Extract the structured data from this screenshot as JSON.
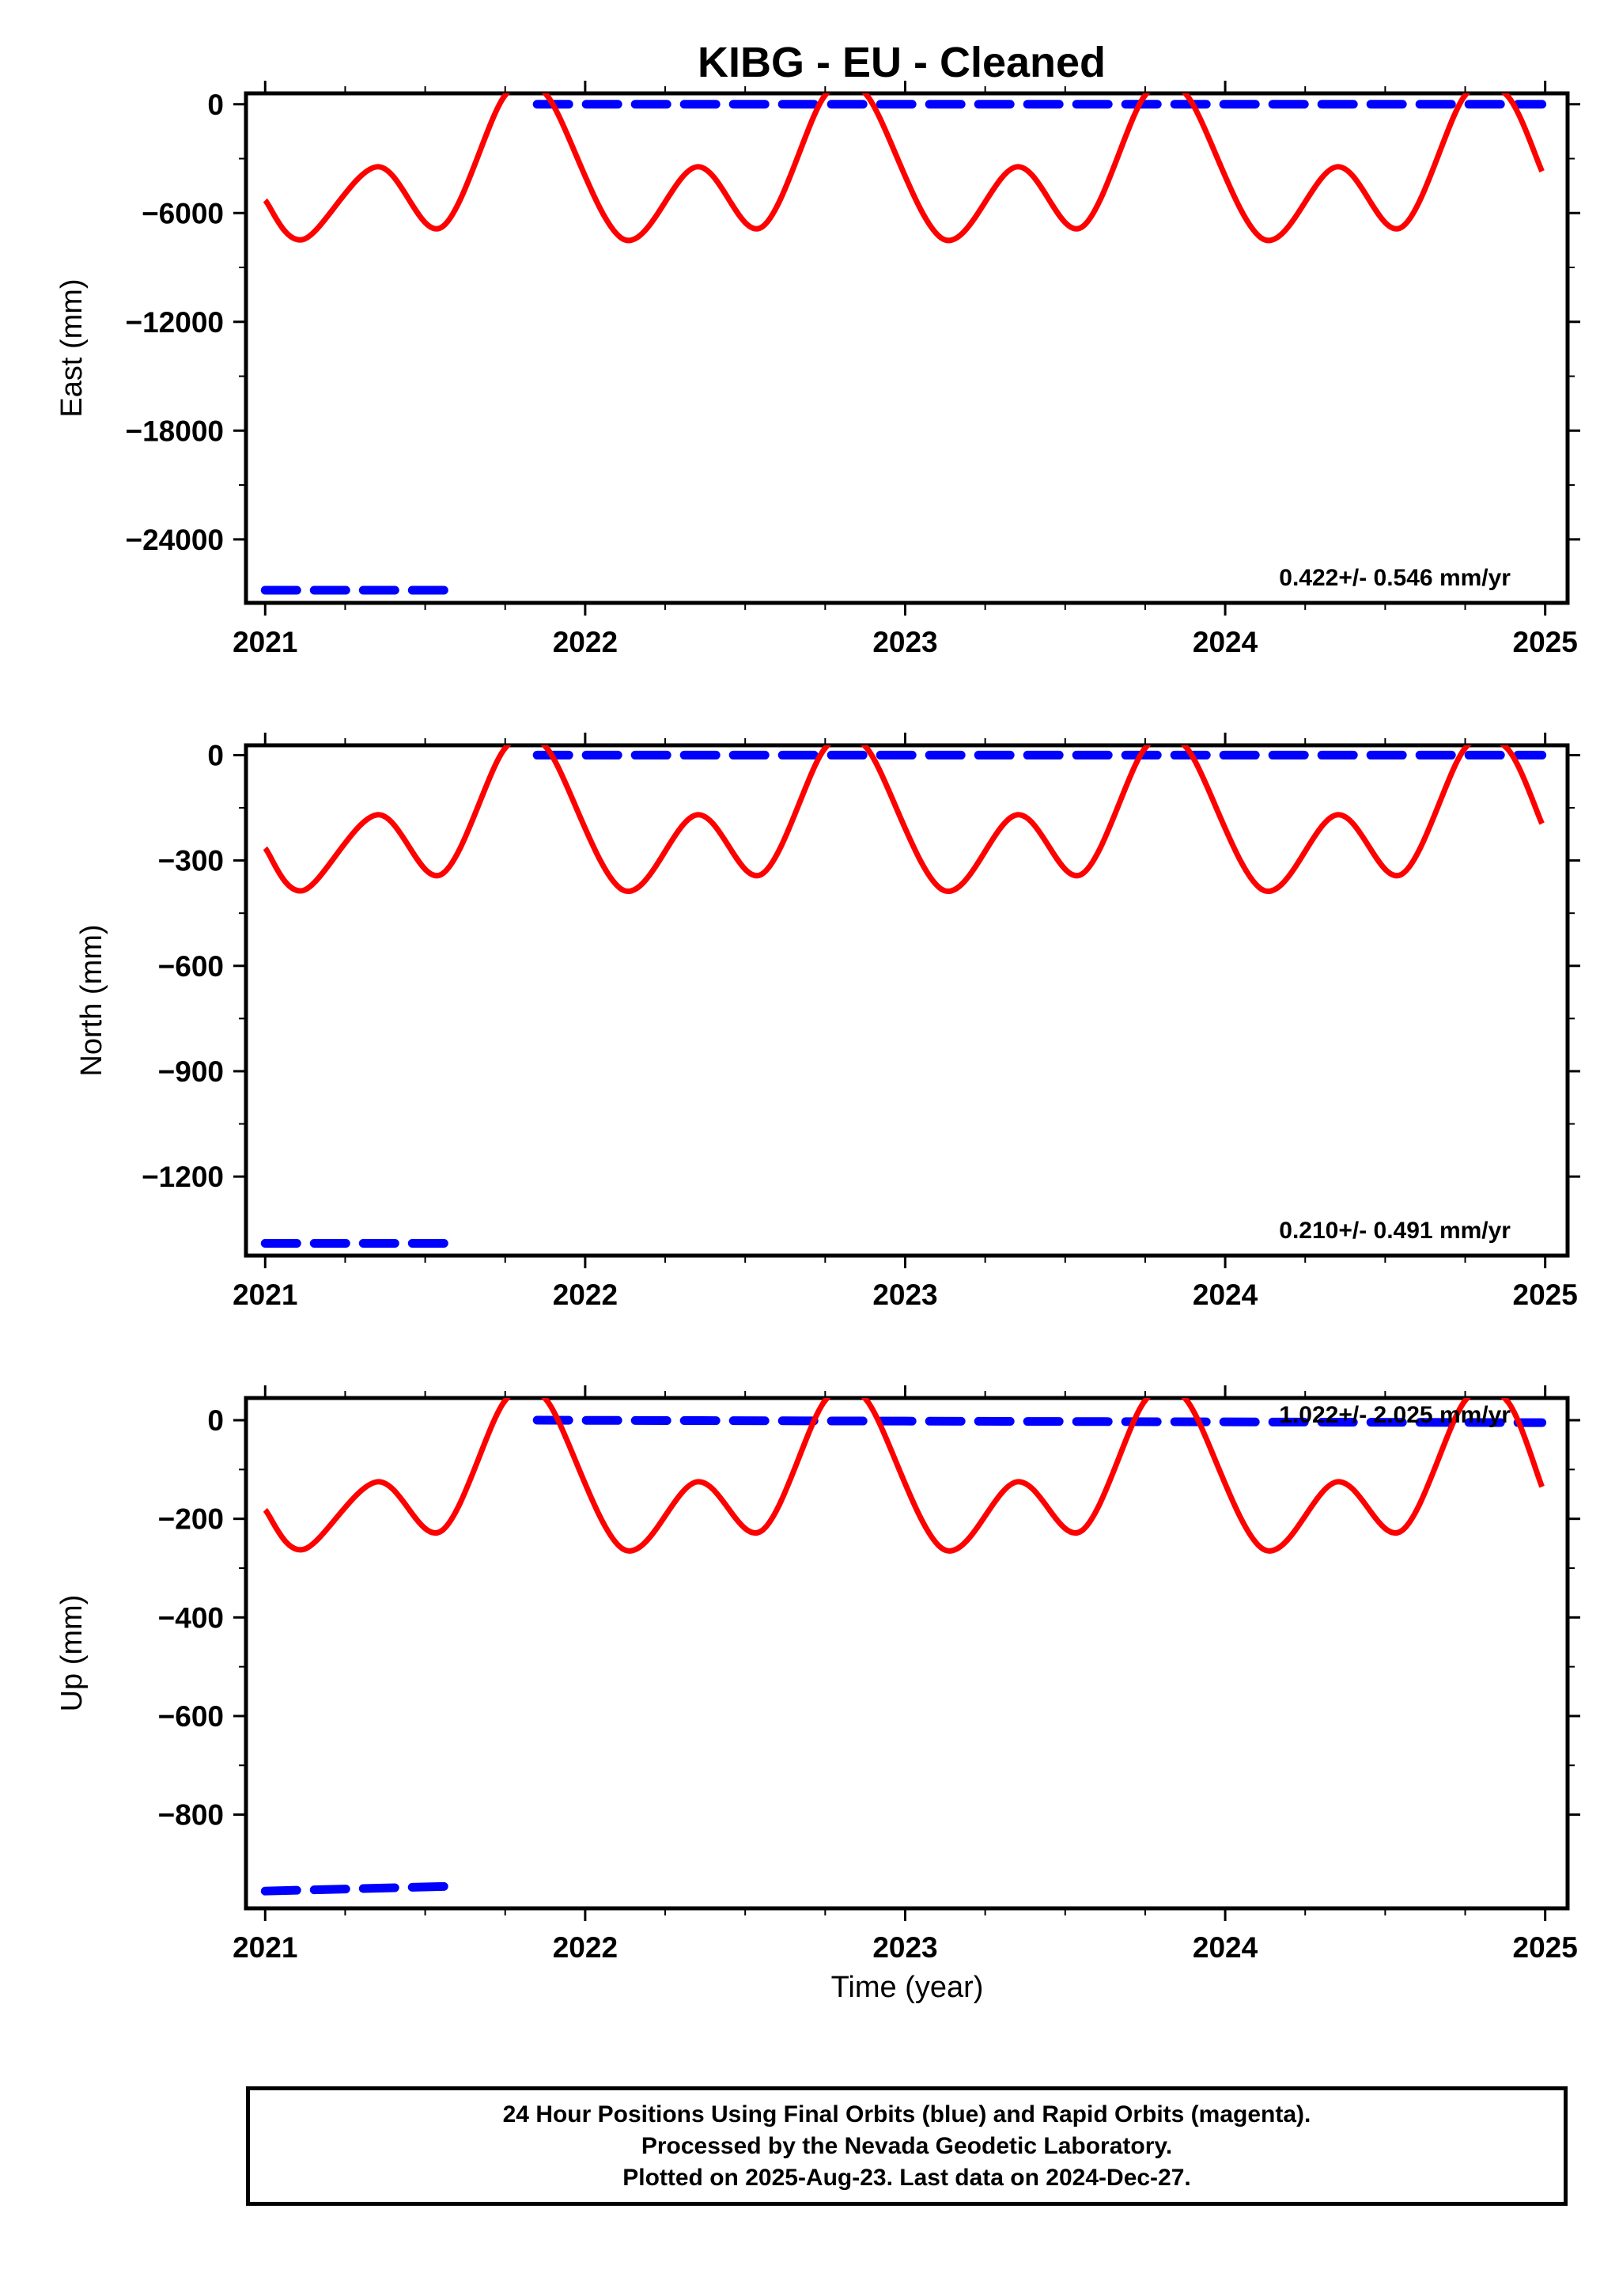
{
  "title": "KIBG  - EU - Cleaned",
  "x_axis_label": "Time (year)",
  "colors": {
    "final_orbits": "#0000ff",
    "model_curve": "#ff0000",
    "frame": "#000000"
  },
  "footer": {
    "line1": "24 Hour Positions Using Final Orbits (blue) and Rapid Orbits (magenta).",
    "line2": "Processed by the Nevada Geodetic Laboratory.",
    "line3": "Plotted on 2025-Aug-23. Last data on 2024-Dec-27."
  },
  "chart_data": [
    {
      "type": "scatter",
      "ylabel": "East (mm)",
      "rate_label": "0.422+/- 0.546 mm/yr",
      "xlim": [
        2020.94,
        2025.07
      ],
      "ylim": [
        -27500,
        600
      ],
      "x_ticks": [
        "2021",
        "2022",
        "2023",
        "2024",
        "2025"
      ],
      "y_ticks": [
        0,
        -6000,
        -12000,
        -18000,
        -24000
      ],
      "y_tick_labels": [
        "0",
        "−6000",
        "−12000",
        "−18000",
        "−24000"
      ],
      "series": [
        {
          "points": [
            [
              2021.0,
              -26800
            ],
            [
              2021.6,
              -26800
            ],
            [
              2021.85,
              0
            ],
            [
              2024.99,
              0
            ]
          ]
        },
        {
          "points": [
            [
              2021.0,
              -5300
            ],
            [
              2021.12,
              -7450
            ],
            [
              2021.35,
              -3450
            ],
            [
              2021.55,
              -6800
            ],
            [
              2021.75,
              500
            ],
            [
              2021.88,
              500
            ],
            [
              2022.12,
              -7450
            ],
            [
              2022.35,
              -3450
            ],
            [
              2022.55,
              -6800
            ],
            [
              2022.75,
              500
            ],
            [
              2022.88,
              500
            ],
            [
              2023.12,
              -7450
            ],
            [
              2023.35,
              -3450
            ],
            [
              2023.55,
              -6800
            ],
            [
              2023.75,
              500
            ],
            [
              2023.88,
              500
            ],
            [
              2024.12,
              -7450
            ],
            [
              2024.35,
              -3450
            ],
            [
              2024.55,
              -6800
            ],
            [
              2024.75,
              500
            ],
            [
              2024.88,
              500
            ],
            [
              2024.99,
              -3700
            ]
          ]
        }
      ]
    },
    {
      "type": "scatter",
      "ylabel": "North (mm)",
      "rate_label": "0.210+/- 0.491 mm/yr",
      "xlim": [
        2020.94,
        2025.07
      ],
      "ylim": [
        -1425,
        28
      ],
      "x_ticks": [
        "2021",
        "2022",
        "2023",
        "2024",
        "2025"
      ],
      "y_ticks": [
        0,
        -300,
        -600,
        -900,
        -1200
      ],
      "y_tick_labels": [
        "0",
        "−300",
        "−600",
        "−900",
        "−1200"
      ],
      "series": [
        {
          "points": [
            [
              2021.0,
              -1390
            ],
            [
              2021.6,
              -1390
            ],
            [
              2021.85,
              0
            ],
            [
              2024.99,
              0
            ]
          ]
        },
        {
          "points": [
            [
              2021.0,
              -265
            ],
            [
              2021.12,
              -385
            ],
            [
              2021.35,
              -170
            ],
            [
              2021.55,
              -340
            ],
            [
              2021.75,
              20
            ],
            [
              2021.88,
              20
            ],
            [
              2022.12,
              -385
            ],
            [
              2022.35,
              -170
            ],
            [
              2022.55,
              -340
            ],
            [
              2022.75,
              20
            ],
            [
              2022.88,
              20
            ],
            [
              2023.12,
              -385
            ],
            [
              2023.35,
              -170
            ],
            [
              2023.55,
              -340
            ],
            [
              2023.75,
              20
            ],
            [
              2023.88,
              20
            ],
            [
              2024.12,
              -385
            ],
            [
              2024.35,
              -170
            ],
            [
              2024.55,
              -340
            ],
            [
              2024.75,
              20
            ],
            [
              2024.88,
              20
            ],
            [
              2024.99,
              -195
            ]
          ]
        }
      ]
    },
    {
      "type": "scatter",
      "ylabel": "Up (mm)",
      "rate_label": "1.022+/- 2.025 mm/yr",
      "xlim": [
        2020.94,
        2025.07
      ],
      "ylim": [
        -990,
        45
      ],
      "x_ticks": [
        "2021",
        "2022",
        "2023",
        "2024",
        "2025"
      ],
      "y_ticks": [
        0,
        -200,
        -400,
        -600,
        -800
      ],
      "y_tick_labels": [
        "0",
        "−200",
        "−400",
        "−600",
        "−800"
      ],
      "series": [
        {
          "points": [
            [
              2021.0,
              -955
            ],
            [
              2021.6,
              -945
            ],
            [
              2021.85,
              0
            ],
            [
              2024.99,
              -5
            ]
          ]
        },
        {
          "points": [
            [
              2021.0,
              -182
            ],
            [
              2021.12,
              -262
            ],
            [
              2021.35,
              -125
            ],
            [
              2021.55,
              -225
            ],
            [
              2021.75,
              40
            ],
            [
              2021.88,
              40
            ],
            [
              2022.12,
              -262
            ],
            [
              2022.35,
              -125
            ],
            [
              2022.55,
              -225
            ],
            [
              2022.75,
              40
            ],
            [
              2022.88,
              40
            ],
            [
              2023.12,
              -262
            ],
            [
              2023.35,
              -125
            ],
            [
              2023.55,
              -225
            ],
            [
              2023.75,
              40
            ],
            [
              2023.88,
              40
            ],
            [
              2024.12,
              -262
            ],
            [
              2024.35,
              -125
            ],
            [
              2024.55,
              -225
            ],
            [
              2024.75,
              40
            ],
            [
              2024.88,
              40
            ],
            [
              2024.99,
              -135
            ]
          ]
        }
      ]
    }
  ]
}
